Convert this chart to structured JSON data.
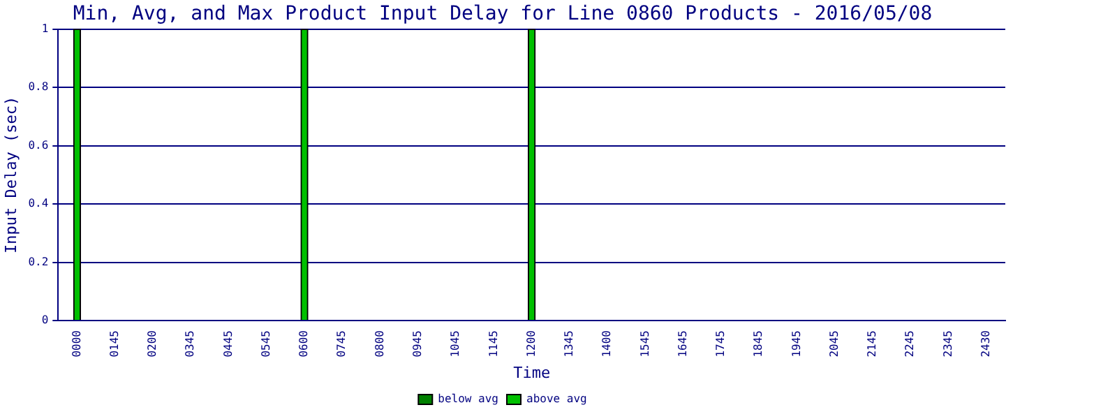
{
  "chart_data": {
    "type": "bar",
    "title": "Min, Avg, and Max Product Input Delay for Line 0860 Products - 2016/05/08",
    "xlabel": "Time",
    "ylabel": "Input Delay (sec)",
    "categories": [
      "0000",
      "0145",
      "0200",
      "0345",
      "0445",
      "0545",
      "0600",
      "0745",
      "0800",
      "0945",
      "1045",
      "1145",
      "1200",
      "1345",
      "1400",
      "1545",
      "1645",
      "1745",
      "1845",
      "1945",
      "2045",
      "2145",
      "2245",
      "2345",
      "2430"
    ],
    "stacked": true,
    "series": [
      {
        "name": "below avg",
        "color": "#008000",
        "values": [
          0,
          null,
          null,
          null,
          null,
          null,
          0,
          null,
          null,
          null,
          null,
          null,
          0,
          null,
          null,
          null,
          null,
          null,
          null,
          null,
          null,
          null,
          null,
          null,
          null
        ]
      },
      {
        "name": "above avg",
        "color": "#00c000",
        "values": [
          1,
          null,
          null,
          null,
          null,
          null,
          1,
          null,
          null,
          null,
          null,
          null,
          1,
          null,
          null,
          null,
          null,
          null,
          null,
          null,
          null,
          null,
          null,
          null,
          null
        ]
      }
    ],
    "ylim": [
      0,
      1
    ],
    "yticks": [
      0,
      0.2,
      0.4,
      0.6,
      0.8,
      1
    ],
    "grid": "y",
    "legend": "bottom"
  }
}
